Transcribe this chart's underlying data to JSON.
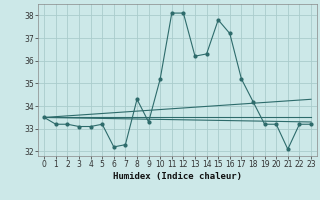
{
  "xlabel": "Humidex (Indice chaleur)",
  "xlim": [
    -0.5,
    23.5
  ],
  "ylim": [
    31.8,
    38.5
  ],
  "yticks": [
    32,
    33,
    34,
    35,
    36,
    37,
    38
  ],
  "xticks": [
    0,
    1,
    2,
    3,
    4,
    5,
    6,
    7,
    8,
    9,
    10,
    11,
    12,
    13,
    14,
    15,
    16,
    17,
    18,
    19,
    20,
    21,
    22,
    23
  ],
  "background_color": "#cce8e8",
  "grid_color": "#aacccc",
  "line_color": "#2d6b6b",
  "series1": {
    "x": [
      0,
      1,
      2,
      3,
      4,
      5,
      6,
      7,
      8,
      9,
      10,
      11,
      12,
      13,
      14,
      15,
      16,
      17,
      18,
      19,
      20,
      21,
      22,
      23
    ],
    "y": [
      33.5,
      33.2,
      33.2,
      33.1,
      33.1,
      33.2,
      32.2,
      32.3,
      34.3,
      33.3,
      35.2,
      38.1,
      38.1,
      36.2,
      36.3,
      37.8,
      37.2,
      35.2,
      34.2,
      33.2,
      33.2,
      32.1,
      33.2,
      33.2
    ]
  },
  "series2": {
    "x": [
      0,
      23
    ],
    "y": [
      33.5,
      33.3
    ]
  },
  "series3": {
    "x": [
      0,
      23
    ],
    "y": [
      33.5,
      34.3
    ]
  },
  "series4": {
    "x": [
      0,
      23
    ],
    "y": [
      33.5,
      33.5
    ]
  }
}
